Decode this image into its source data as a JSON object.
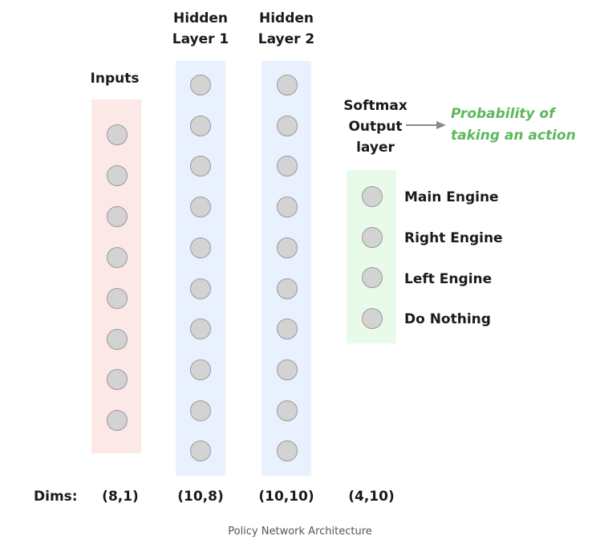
{
  "layers": [
    {
      "id": "inputs",
      "title_lines": [
        "Inputs"
      ],
      "node_count": 8,
      "dims": "(8,1)",
      "color": "#fde8e8"
    },
    {
      "id": "hidden1",
      "title_lines": [
        "Hidden",
        "Layer 1"
      ],
      "node_count": 10,
      "dims": "(10,8)",
      "color": "#e8f1fd"
    },
    {
      "id": "hidden2",
      "title_lines": [
        "Hidden",
        "Layer 2"
      ],
      "node_count": 10,
      "dims": "(10,10)",
      "color": "#e8f1fd"
    },
    {
      "id": "output",
      "title_lines": [
        "Softmax",
        "Output",
        "layer"
      ],
      "node_count": 4,
      "dims": "(4,10)",
      "color": "#e8fbe9"
    }
  ],
  "output_labels": [
    "Main Engine",
    "Right Engine",
    "Left Engine",
    "Do Nothing"
  ],
  "probability_note": [
    "Probability of",
    "taking an action"
  ],
  "dims_label": "Dims:",
  "caption": "Policy Network Architecture",
  "colors": {
    "node_fill": "#d3d3d3",
    "node_stroke": "#9a9a9a",
    "note_text": "#5cb85c",
    "arrow": "#8a8a8a"
  }
}
